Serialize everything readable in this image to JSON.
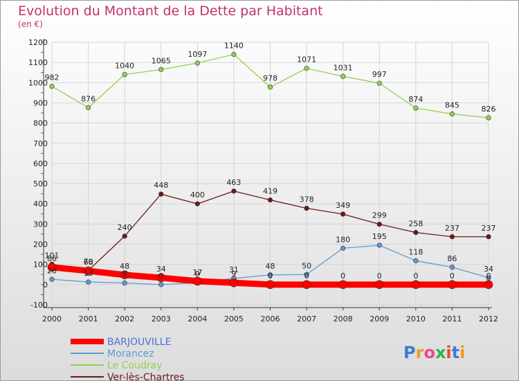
{
  "chart_data": {
    "type": "line",
    "title": "Evolution du Montant de la Dette par Habitant",
    "subtitle": "(en €)",
    "x": [
      "2000",
      "2001",
      "2002",
      "2003",
      "2004",
      "2005",
      "2006",
      "2007",
      "2008",
      "2009",
      "2010",
      "2011",
      "2012"
    ],
    "ylim": [
      -100,
      1200
    ],
    "yticks": [
      -100,
      0,
      100,
      200,
      300,
      400,
      500,
      600,
      700,
      800,
      900,
      1000,
      1100,
      1200
    ],
    "grid": true,
    "legend_position": "bottom-left",
    "series": [
      {
        "name": "BARJOUVILLE",
        "color": "#ff0000",
        "values": [
          86,
          68,
          48,
          34,
          17,
          9,
          0,
          0,
          0,
          0,
          0,
          0,
          0
        ]
      },
      {
        "name": "Morancez",
        "color": "#5b9bd5",
        "values": [
          26,
          13,
          8,
          0,
          9,
          31,
          48,
          50,
          180,
          195,
          118,
          86,
          34
        ]
      },
      {
        "name": "Le Coudray",
        "color": "#92d050",
        "values": [
          982,
          876,
          1040,
          1065,
          1097,
          1140,
          978,
          1071,
          1031,
          997,
          874,
          845,
          826
        ]
      },
      {
        "name": "Ver-lès-Chartres",
        "color": "#6b1a1a",
        "values": [
          101,
          70,
          240,
          448,
          400,
          463,
          419,
          378,
          349,
          299,
          258,
          237,
          237
        ]
      }
    ]
  },
  "logo": {
    "text": "Proxiti"
  }
}
